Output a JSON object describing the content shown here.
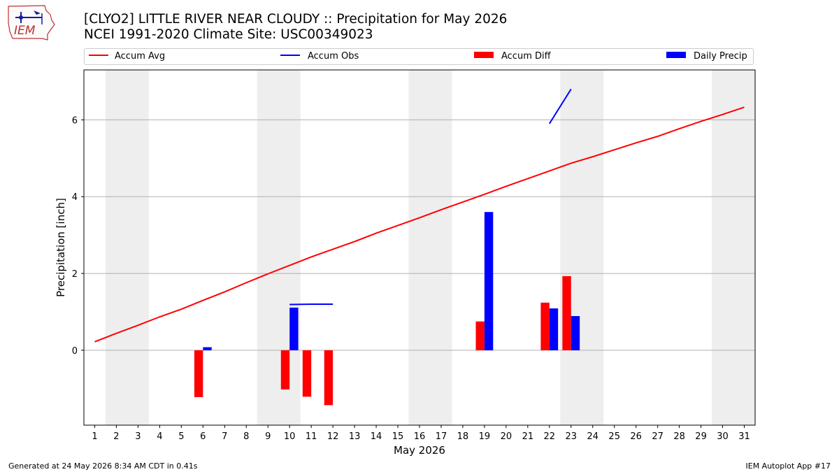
{
  "header": {
    "title_line1": "[CLYO2] LITTLE RIVER NEAR CLOUDY :: Precipitation for May 2026",
    "title_line2": "NCEI 1991-2020 Climate Site: USC00349023",
    "logo_text": "IEM"
  },
  "legend": {
    "accum_avg": "Accum Avg",
    "accum_obs": "Accum Obs",
    "accum_diff": "Accum Diff",
    "daily_precip": "Daily Precip"
  },
  "colors": {
    "avg": "#ff0000",
    "obs": "#0000ff",
    "diff": "#ff0000",
    "daily": "#0000ff",
    "weekend_band": "#eeeeee",
    "grid": "#b0b0b0"
  },
  "chart_data": {
    "type": "bar",
    "xlabel": "May 2026",
    "ylabel": "Precipitation [inch]",
    "xlim": [
      0.5,
      31.5
    ],
    "ylim": [
      -1.95,
      7.3
    ],
    "yticks": [
      0,
      2,
      4,
      6
    ],
    "xticks": [
      1,
      2,
      3,
      4,
      5,
      6,
      7,
      8,
      9,
      10,
      11,
      12,
      13,
      14,
      15,
      16,
      17,
      18,
      19,
      20,
      21,
      22,
      23,
      24,
      25,
      26,
      27,
      28,
      29,
      30,
      31
    ],
    "grid": "horizontal",
    "legend_position": "top",
    "weekend_bands": [
      [
        1.5,
        3.5
      ],
      [
        8.5,
        10.5
      ],
      [
        15.5,
        17.5
      ],
      [
        22.5,
        24.5
      ],
      [
        29.5,
        31.5
      ]
    ],
    "accum_avg": {
      "x": [
        1,
        2,
        3,
        4,
        5,
        6,
        7,
        8,
        9,
        10,
        11,
        12,
        13,
        14,
        15,
        16,
        17,
        18,
        19,
        20,
        21,
        22,
        23,
        24,
        25,
        26,
        27,
        28,
        29,
        30,
        31
      ],
      "y": [
        0.22,
        0.44,
        0.65,
        0.87,
        1.07,
        1.3,
        1.52,
        1.76,
        1.99,
        2.21,
        2.43,
        2.63,
        2.83,
        3.05,
        3.25,
        3.45,
        3.66,
        3.86,
        4.06,
        4.27,
        4.47,
        4.67,
        4.87,
        5.04,
        5.22,
        5.4,
        5.57,
        5.77,
        5.96,
        6.14,
        6.33
      ]
    },
    "accum_obs": [
      {
        "x": [
          10,
          11,
          12
        ],
        "y": [
          1.19,
          1.2,
          1.2
        ]
      },
      {
        "x": [
          22,
          23
        ],
        "y": [
          5.9,
          6.8
        ]
      }
    ],
    "accum_diff": {
      "x": [
        6,
        10,
        11,
        12,
        19,
        22,
        23
      ],
      "values": [
        -1.22,
        -1.02,
        -1.21,
        -1.43,
        0.75,
        1.24,
        1.93
      ]
    },
    "daily_precip": {
      "x": [
        6,
        10,
        19,
        22,
        23
      ],
      "values": [
        0.08,
        1.11,
        3.6,
        1.09,
        0.89
      ]
    }
  },
  "footer": {
    "generated": "Generated at 24 May 2026 8:34 AM CDT in 0.41s",
    "app": "IEM Autoplot App #17"
  }
}
